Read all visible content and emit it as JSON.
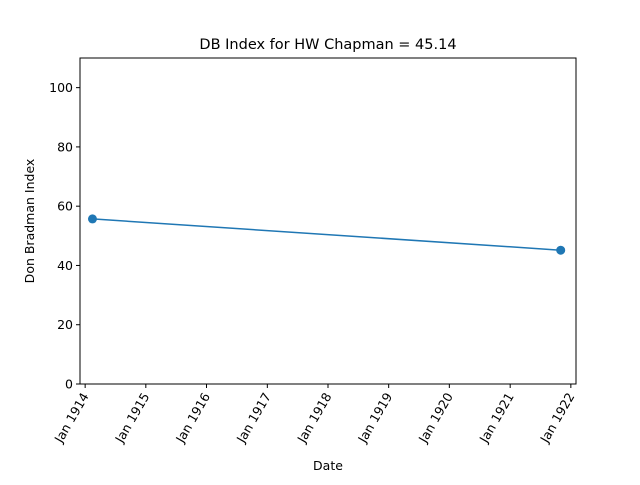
{
  "chart_data": {
    "type": "line",
    "title": "DB Index for HW Chapman = 45.14",
    "xlabel": "Date",
    "ylabel": "Don Bradman Index",
    "x_axis_type": "date",
    "xlim": [
      "1913-12-01",
      "1922-02-01"
    ],
    "ylim": [
      0,
      110
    ],
    "x_tick_dates": [
      "1914-01-01",
      "1915-01-01",
      "1916-01-01",
      "1917-01-01",
      "1918-01-01",
      "1919-01-01",
      "1920-01-01",
      "1921-01-01",
      "1922-01-01"
    ],
    "x_tick_labels": [
      "Jan 1914",
      "Jan 1915",
      "Jan 1916",
      "Jan 1917",
      "Jan 1918",
      "Jan 1919",
      "Jan 1920",
      "Jan 1921",
      "Jan 1922"
    ],
    "y_ticks": [
      0,
      20,
      40,
      60,
      80,
      100
    ],
    "y_tick_labels": [
      "0",
      "20",
      "40",
      "60",
      "80",
      "100"
    ],
    "grid": false,
    "series": [
      {
        "color": "#1f77b4",
        "marker": "circle",
        "x": [
          "1914-02-14",
          "1921-11-01"
        ],
        "y": [
          55.7,
          45.14
        ]
      }
    ]
  }
}
